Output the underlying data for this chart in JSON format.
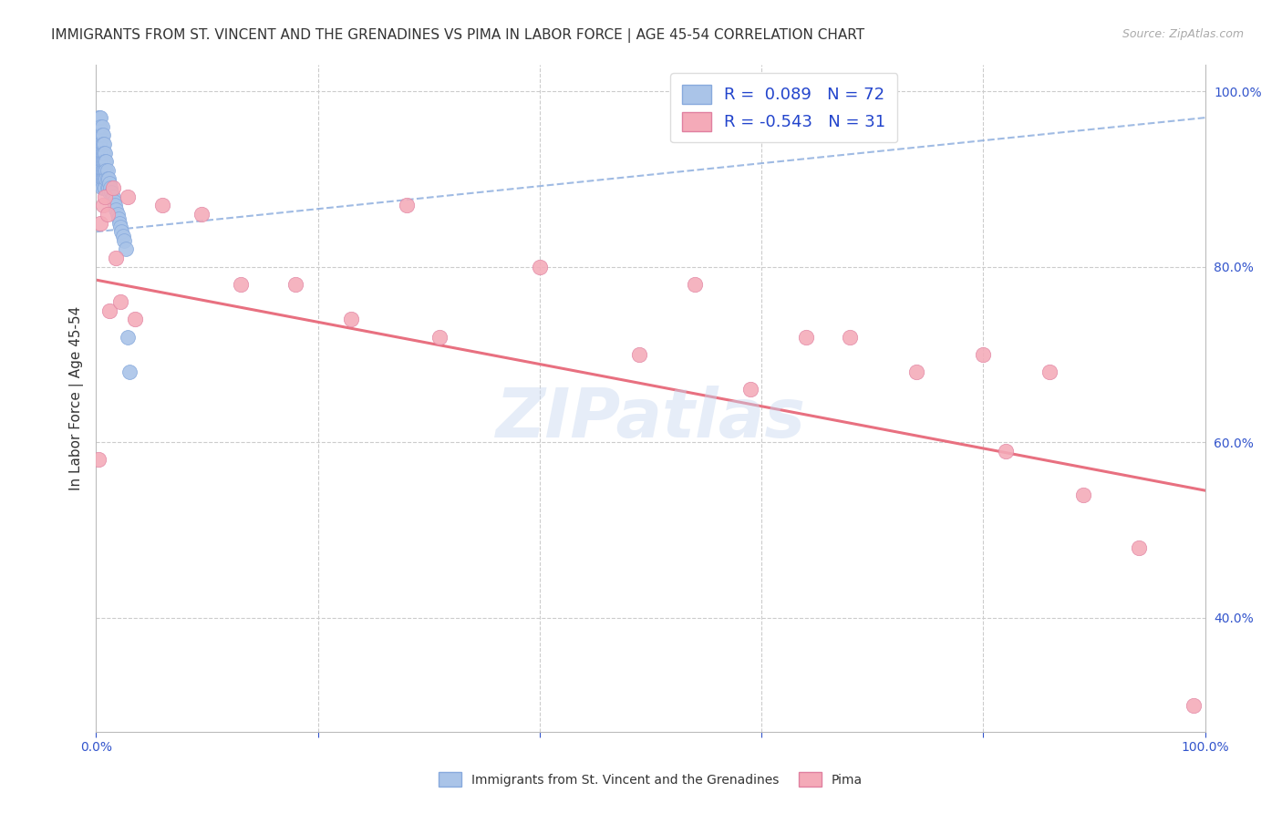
{
  "title": "IMMIGRANTS FROM ST. VINCENT AND THE GRENADINES VS PIMA IN LABOR FORCE | AGE 45-54 CORRELATION CHART",
  "source": "Source: ZipAtlas.com",
  "ylabel": "In Labor Force | Age 45-54",
  "xlim": [
    0.0,
    1.0
  ],
  "ylim": [
    0.27,
    1.03
  ],
  "y_tick_right": [
    0.4,
    0.6,
    0.8,
    1.0
  ],
  "y_tick_right_labels": [
    "40.0%",
    "60.0%",
    "80.0%",
    "100.0%"
  ],
  "blue_r": 0.089,
  "blue_n": 72,
  "pink_r": -0.543,
  "pink_n": 31,
  "blue_color": "#aac4e8",
  "pink_color": "#f4aab8",
  "blue_line_color": "#88aadd",
  "pink_line_color": "#e87080",
  "legend_text_color": "#2244cc",
  "watermark": "ZIPatlas",
  "blue_x": [
    0.001,
    0.002,
    0.002,
    0.002,
    0.002,
    0.003,
    0.003,
    0.003,
    0.003,
    0.003,
    0.003,
    0.003,
    0.003,
    0.004,
    0.004,
    0.004,
    0.004,
    0.004,
    0.004,
    0.004,
    0.004,
    0.005,
    0.005,
    0.005,
    0.005,
    0.005,
    0.005,
    0.005,
    0.005,
    0.006,
    0.006,
    0.006,
    0.006,
    0.006,
    0.006,
    0.007,
    0.007,
    0.007,
    0.007,
    0.007,
    0.007,
    0.008,
    0.008,
    0.008,
    0.008,
    0.008,
    0.009,
    0.009,
    0.009,
    0.01,
    0.01,
    0.01,
    0.011,
    0.011,
    0.012,
    0.012,
    0.013,
    0.014,
    0.015,
    0.016,
    0.017,
    0.018,
    0.019,
    0.02,
    0.021,
    0.022,
    0.023,
    0.024,
    0.025,
    0.027,
    0.028,
    0.03
  ],
  "blue_y": [
    0.935,
    0.97,
    0.96,
    0.95,
    0.94,
    0.97,
    0.96,
    0.95,
    0.94,
    0.93,
    0.92,
    0.91,
    0.9,
    0.97,
    0.96,
    0.95,
    0.94,
    0.93,
    0.92,
    0.91,
    0.9,
    0.96,
    0.95,
    0.94,
    0.93,
    0.92,
    0.91,
    0.9,
    0.89,
    0.95,
    0.94,
    0.93,
    0.92,
    0.91,
    0.9,
    0.94,
    0.93,
    0.92,
    0.91,
    0.9,
    0.89,
    0.93,
    0.92,
    0.91,
    0.9,
    0.89,
    0.92,
    0.91,
    0.9,
    0.91,
    0.9,
    0.89,
    0.9,
    0.89,
    0.895,
    0.885,
    0.89,
    0.885,
    0.88,
    0.875,
    0.87,
    0.865,
    0.86,
    0.855,
    0.85,
    0.845,
    0.84,
    0.835,
    0.83,
    0.82,
    0.72,
    0.68
  ],
  "pink_x": [
    0.002,
    0.004,
    0.006,
    0.008,
    0.01,
    0.012,
    0.015,
    0.018,
    0.022,
    0.028,
    0.035,
    0.06,
    0.095,
    0.13,
    0.18,
    0.23,
    0.28,
    0.31,
    0.4,
    0.49,
    0.54,
    0.59,
    0.64,
    0.68,
    0.74,
    0.8,
    0.82,
    0.86,
    0.89,
    0.94,
    0.99
  ],
  "pink_y": [
    0.58,
    0.85,
    0.87,
    0.88,
    0.86,
    0.75,
    0.89,
    0.81,
    0.76,
    0.88,
    0.74,
    0.87,
    0.86,
    0.78,
    0.78,
    0.74,
    0.87,
    0.72,
    0.8,
    0.7,
    0.78,
    0.66,
    0.72,
    0.72,
    0.68,
    0.7,
    0.59,
    0.68,
    0.54,
    0.48,
    0.3
  ],
  "blue_line_x0": 0.0,
  "blue_line_x1": 1.0,
  "blue_line_y0": 0.84,
  "blue_line_y1": 0.97,
  "pink_line_x0": 0.0,
  "pink_line_x1": 1.0,
  "pink_line_y0": 0.785,
  "pink_line_y1": 0.545
}
